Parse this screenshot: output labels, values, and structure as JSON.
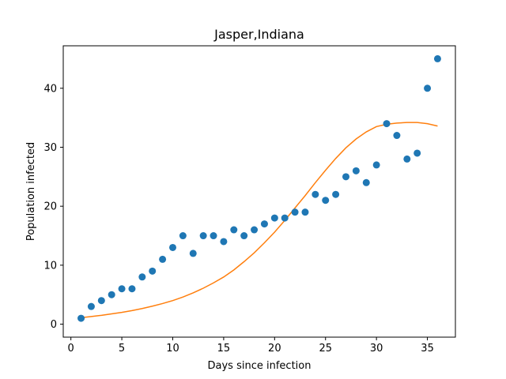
{
  "chart_data": {
    "type": "scatter",
    "title": "Jasper,Indiana",
    "xlabel": "Days since infection",
    "ylabel": "Population infected",
    "xlim": [
      -0.75,
      37.75
    ],
    "ylim": [
      -2.2,
      47.2
    ],
    "xticks": [
      0,
      5,
      10,
      15,
      20,
      25,
      30,
      35
    ],
    "yticks": [
      0,
      10,
      20,
      30,
      40
    ],
    "grid": false,
    "series": [
      {
        "kind": "scatter",
        "color": "#1f77b4",
        "x": [
          1,
          2,
          3,
          4,
          5,
          6,
          7,
          8,
          9,
          10,
          11,
          12,
          13,
          14,
          15,
          16,
          17,
          18,
          19,
          20,
          21,
          22,
          23,
          24,
          25,
          26,
          27,
          28,
          29,
          30,
          31,
          32,
          33,
          34,
          35,
          36
        ],
        "y": [
          1,
          3,
          4,
          5,
          6,
          6,
          8,
          9,
          11,
          13,
          15,
          12,
          15,
          15,
          14,
          16,
          15,
          16,
          17,
          18,
          18,
          19,
          19,
          22,
          21,
          22,
          25,
          26,
          24,
          27,
          34,
          32,
          28,
          29,
          40,
          45
        ]
      },
      {
        "kind": "line",
        "color": "#ff7f0e",
        "x": [
          1,
          2,
          3,
          4,
          5,
          6,
          7,
          8,
          9,
          10,
          11,
          12,
          13,
          14,
          15,
          16,
          17,
          18,
          19,
          20,
          21,
          22,
          23,
          24,
          25,
          26,
          27,
          28,
          29,
          30,
          31,
          32,
          33,
          34,
          35,
          36
        ],
        "y": [
          1.1,
          1.3,
          1.5,
          1.75,
          2.0,
          2.3,
          2.65,
          3.05,
          3.5,
          4.0,
          4.6,
          5.3,
          6.1,
          7.0,
          8.0,
          9.2,
          10.6,
          12.1,
          13.8,
          15.6,
          17.6,
          19.7,
          21.8,
          24.0,
          26.1,
          28.1,
          29.9,
          31.4,
          32.6,
          33.5,
          33.9,
          34.1,
          34.2,
          34.2,
          34.0,
          33.6
        ]
      }
    ]
  }
}
